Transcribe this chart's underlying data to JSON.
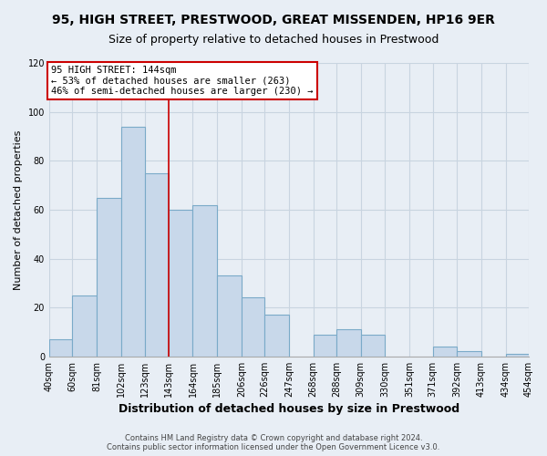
{
  "title": "95, HIGH STREET, PRESTWOOD, GREAT MISSENDEN, HP16 9ER",
  "subtitle": "Size of property relative to detached houses in Prestwood",
  "xlabel": "Distribution of detached houses by size in Prestwood",
  "ylabel": "Number of detached properties",
  "bin_labels": [
    "40sqm",
    "60sqm",
    "81sqm",
    "102sqm",
    "123sqm",
    "143sqm",
    "164sqm",
    "185sqm",
    "206sqm",
    "226sqm",
    "247sqm",
    "268sqm",
    "288sqm",
    "309sqm",
    "330sqm",
    "351sqm",
    "371sqm",
    "392sqm",
    "413sqm",
    "434sqm",
    "454sqm"
  ],
  "bin_edges": [
    40,
    60,
    81,
    102,
    123,
    143,
    164,
    185,
    206,
    226,
    247,
    268,
    288,
    309,
    330,
    351,
    371,
    392,
    413,
    434,
    454
  ],
  "bar_heights": [
    7,
    25,
    65,
    94,
    75,
    60,
    62,
    33,
    24,
    17,
    0,
    9,
    11,
    9,
    0,
    0,
    4,
    2,
    0,
    1,
    0
  ],
  "bar_color": "#c8d8ea",
  "bar_edge_color": "#7aaac8",
  "property_line_x": 143,
  "property_line_color": "#cc0000",
  "annotation_text": "95 HIGH STREET: 144sqm\n← 53% of detached houses are smaller (263)\n46% of semi-detached houses are larger (230) →",
  "annotation_box_color": "#ffffff",
  "annotation_box_edge_color": "#cc0000",
  "ylim": [
    0,
    120
  ],
  "yticks": [
    0,
    20,
    40,
    60,
    80,
    100,
    120
  ],
  "footer1": "Contains HM Land Registry data © Crown copyright and database right 2024.",
  "footer2": "Contains public sector information licensed under the Open Government Licence v3.0.",
  "bg_color": "#e8eef5",
  "grid_color": "#c8d4e0",
  "title_fontsize": 10,
  "subtitle_fontsize": 9,
  "xlabel_fontsize": 9,
  "ylabel_fontsize": 8,
  "tick_fontsize": 7,
  "footer_fontsize": 6
}
